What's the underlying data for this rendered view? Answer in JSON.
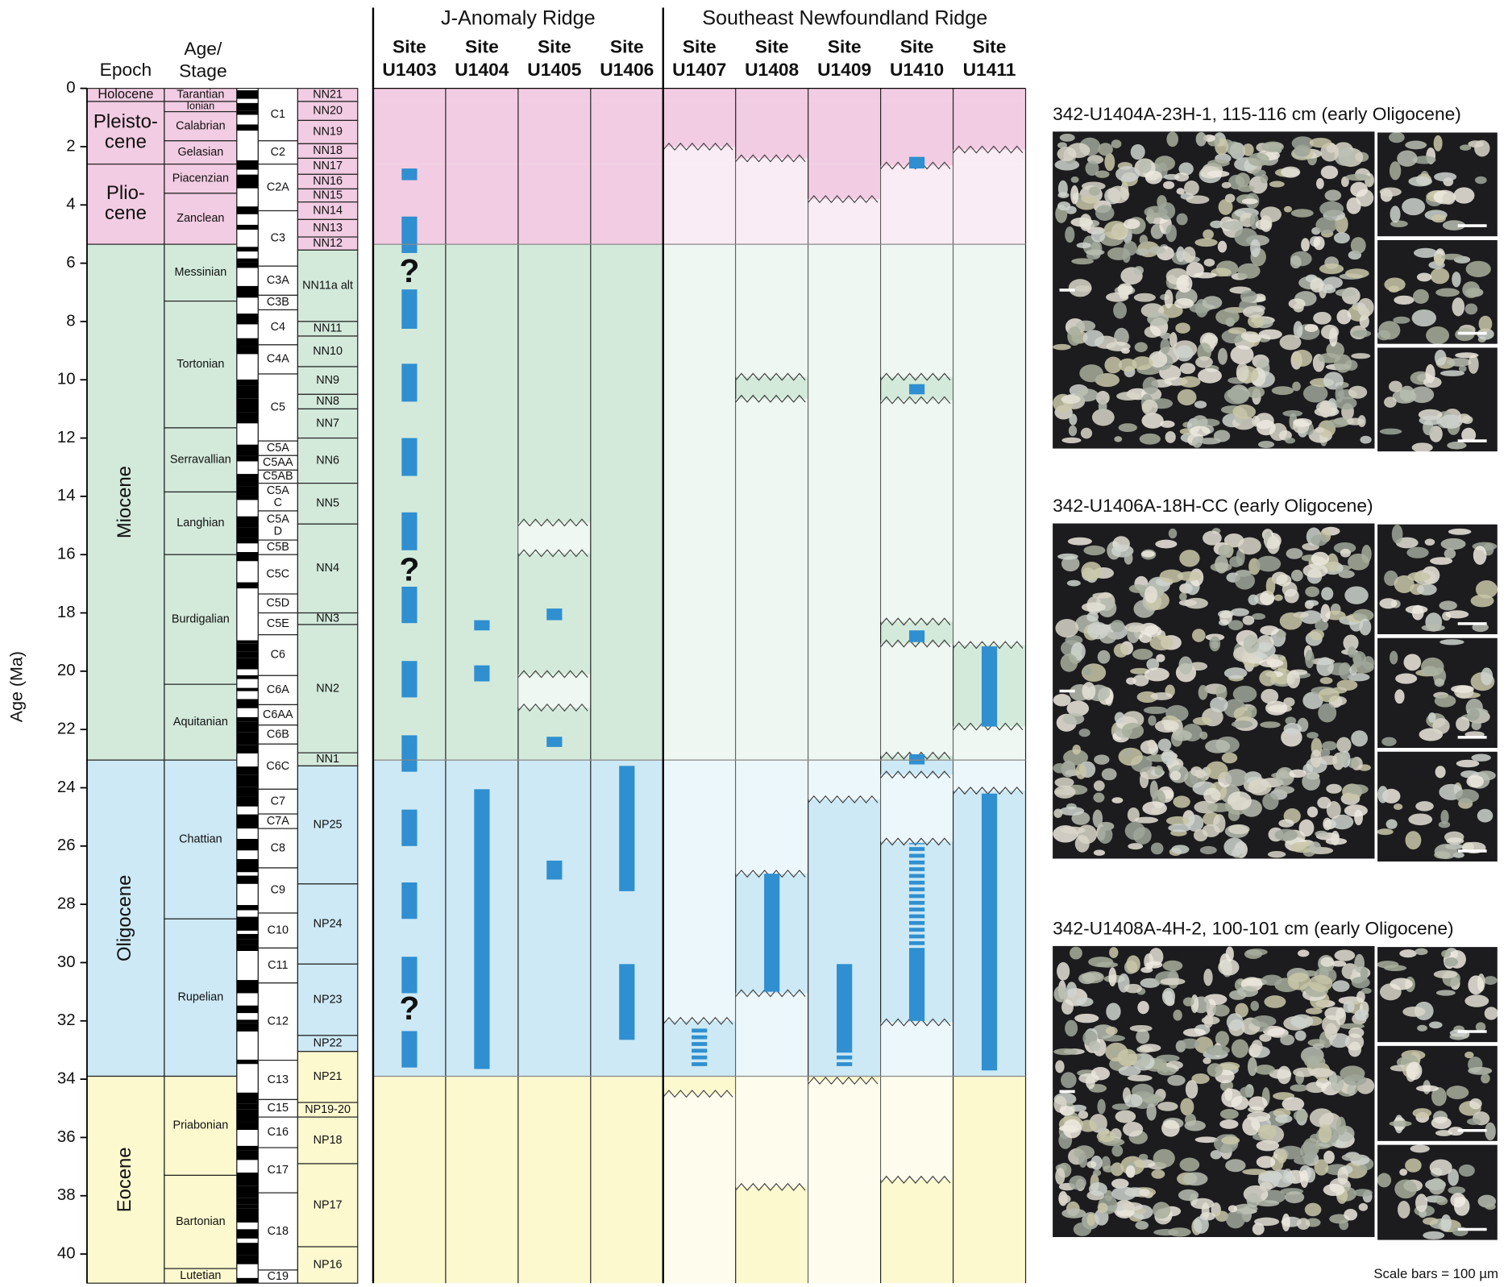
{
  "chart_data": {
    "type": "stratigraphic",
    "y_label": "Age (Ma)",
    "ylim": [
      0,
      41
    ],
    "yticks": [
      0,
      2,
      4,
      6,
      8,
      10,
      12,
      14,
      16,
      18,
      20,
      22,
      24,
      26,
      28,
      30,
      32,
      34,
      36,
      38,
      40
    ],
    "headers": {
      "epoch": [
        "Epoch"
      ],
      "stage": [
        "Age/",
        "Stage"
      ]
    },
    "bar_color": "#2f8fd0",
    "epochs": [
      {
        "label": [
          "Holocene"
        ],
        "top": 0,
        "base": 0.45,
        "color": "#f2cce3"
      },
      {
        "label": [
          "Pleisto-",
          "cene"
        ],
        "top": 0.45,
        "base": 2.6,
        "color": "#f2cce3"
      },
      {
        "label": [
          "Plio-",
          "cene"
        ],
        "top": 2.6,
        "base": 5.35,
        "color": "#f2cce3"
      },
      {
        "label": [
          "Miocene"
        ],
        "top": 5.35,
        "base": 23.05,
        "color": "#d3eadb"
      },
      {
        "label": [
          "Oligocene"
        ],
        "top": 23.05,
        "base": 33.9,
        "color": "#cde9f5"
      },
      {
        "label": [
          "Eocene"
        ],
        "top": 33.9,
        "base": 41,
        "color": "#fdf9cf"
      }
    ],
    "stages": [
      {
        "label": [
          "Tarantian"
        ],
        "top": 0,
        "base": 0.45
      },
      {
        "label": [
          "Ionian"
        ],
        "top": 0.45,
        "base": 0.8
      },
      {
        "label": [
          "Calabrian"
        ],
        "top": 0.8,
        "base": 1.8
      },
      {
        "label": [
          "Gelasian"
        ],
        "top": 1.8,
        "base": 2.6
      },
      {
        "label": [
          "Piacenzian"
        ],
        "top": 2.6,
        "base": 3.6
      },
      {
        "label": [
          "Zanclean"
        ],
        "top": 3.6,
        "base": 5.35
      },
      {
        "label": [
          "Messinian"
        ],
        "top": 5.35,
        "base": 7.3
      },
      {
        "label": [
          "Tortonian"
        ],
        "top": 7.3,
        "base": 11.65
      },
      {
        "label": [
          "Serravallian"
        ],
        "top": 11.65,
        "base": 13.85
      },
      {
        "label": [
          "Langhian"
        ],
        "top": 13.85,
        "base": 16.0
      },
      {
        "label": [
          "Burdigalian"
        ],
        "top": 16.0,
        "base": 20.45
      },
      {
        "label": [
          "Aquitanian"
        ],
        "top": 20.45,
        "base": 23.05
      },
      {
        "label": [
          "Chattian"
        ],
        "top": 23.05,
        "base": 28.5
      },
      {
        "label": [
          "Rupelian"
        ],
        "top": 28.5,
        "base": 33.9
      },
      {
        "label": [
          "Priabonian"
        ],
        "top": 33.9,
        "base": 37.3
      },
      {
        "label": [
          "Bartonian"
        ],
        "top": 37.3,
        "base": 40.5
      },
      {
        "label": [
          "Lutetian"
        ],
        "top": 40.5,
        "base": 41
      }
    ],
    "chrons": [
      {
        "label": [
          "C1"
        ],
        "top": 0,
        "base": 1.8
      },
      {
        "label": [
          "C2"
        ],
        "top": 1.8,
        "base": 2.6
      },
      {
        "label": [
          "C2A"
        ],
        "top": 2.6,
        "base": 4.2
      },
      {
        "label": [
          "C3"
        ],
        "top": 4.2,
        "base": 6.1
      },
      {
        "label": [
          "C3A"
        ],
        "top": 6.1,
        "base": 7.1
      },
      {
        "label": [
          "C3B"
        ],
        "top": 7.1,
        "base": 7.6
      },
      {
        "label": [
          "C4"
        ],
        "top": 7.6,
        "base": 8.8
      },
      {
        "label": [
          "C4A"
        ],
        "top": 8.8,
        "base": 9.8
      },
      {
        "label": [
          "C5"
        ],
        "top": 9.8,
        "base": 12.1
      },
      {
        "label": [
          "C5A"
        ],
        "top": 12.1,
        "base": 12.6
      },
      {
        "label": [
          "C5AA"
        ],
        "top": 12.6,
        "base": 13.1
      },
      {
        "label": [
          "C5AB"
        ],
        "top": 13.1,
        "base": 13.55
      },
      {
        "label": [
          "C5A",
          "C"
        ],
        "top": 13.55,
        "base": 14.5
      },
      {
        "label": [
          "C5A",
          "D"
        ],
        "top": 14.5,
        "base": 15.5
      },
      {
        "label": [
          "C5B"
        ],
        "top": 15.5,
        "base": 16.0
      },
      {
        "label": [
          "C5C"
        ],
        "top": 16.0,
        "base": 17.35
      },
      {
        "label": [
          "C5D"
        ],
        "top": 17.35,
        "base": 18.0
      },
      {
        "label": [
          "C5E"
        ],
        "top": 18.0,
        "base": 18.75
      },
      {
        "label": [
          "C6"
        ],
        "top": 18.75,
        "base": 20.15
      },
      {
        "label": [
          "C6A"
        ],
        "top": 20.15,
        "base": 21.15
      },
      {
        "label": [
          "C6AA"
        ],
        "top": 21.15,
        "base": 21.85
      },
      {
        "label": [
          "C6B"
        ],
        "top": 21.85,
        "base": 22.5
      },
      {
        "label": [
          "C6C"
        ],
        "top": 22.5,
        "base": 24.05
      },
      {
        "label": [
          "C7"
        ],
        "top": 24.05,
        "base": 24.9
      },
      {
        "label": [
          "C7A"
        ],
        "top": 24.9,
        "base": 25.4
      },
      {
        "label": [
          "C8"
        ],
        "top": 25.4,
        "base": 26.75
      },
      {
        "label": [
          "C9"
        ],
        "top": 26.75,
        "base": 28.3
      },
      {
        "label": [
          "C10"
        ],
        "top": 28.3,
        "base": 29.5
      },
      {
        "label": [
          "C11"
        ],
        "top": 29.5,
        "base": 30.7
      },
      {
        "label": [
          "C12"
        ],
        "top": 30.7,
        "base": 33.35
      },
      {
        "label": [
          "C13"
        ],
        "top": 33.35,
        "base": 34.7
      },
      {
        "label": [
          "C15"
        ],
        "top": 34.7,
        "base": 35.3
      },
      {
        "label": [
          "C16"
        ],
        "top": 35.3,
        "base": 36.35
      },
      {
        "label": [
          "C17"
        ],
        "top": 36.35,
        "base": 37.9
      },
      {
        "label": [
          "C18"
        ],
        "top": 37.9,
        "base": 40.55
      },
      {
        "label": [
          "C19"
        ],
        "top": 40.55,
        "base": 41
      }
    ],
    "zones": [
      {
        "label": [
          "NN21"
        ],
        "top": 0,
        "base": 0.45
      },
      {
        "label": [
          "NN20"
        ],
        "top": 0.45,
        "base": 1.1
      },
      {
        "label": [
          "NN19"
        ],
        "top": 1.1,
        "base": 1.9
      },
      {
        "label": [
          "NN18"
        ],
        "top": 1.9,
        "base": 2.4
      },
      {
        "label": [
          "NN17"
        ],
        "top": 2.4,
        "base": 2.95
      },
      {
        "label": [
          "NN16"
        ],
        "top": 2.95,
        "base": 3.45
      },
      {
        "label": [
          "NN15"
        ],
        "top": 3.45,
        "base": 3.9
      },
      {
        "label": [
          "NN14"
        ],
        "top": 3.9,
        "base": 4.5
      },
      {
        "label": [
          "NN13"
        ],
        "top": 4.5,
        "base": 5.1
      },
      {
        "label": [
          "NN12"
        ],
        "top": 5.1,
        "base": 5.55
      },
      {
        "label": [
          "NN11a alt"
        ],
        "top": 5.55,
        "base": 8.0
      },
      {
        "label": [
          "NN11"
        ],
        "top": 8.0,
        "base": 8.5
      },
      {
        "label": [
          "NN10"
        ],
        "top": 8.5,
        "base": 9.55
      },
      {
        "label": [
          "NN9"
        ],
        "top": 9.55,
        "base": 10.5
      },
      {
        "label": [
          "NN8"
        ],
        "top": 10.5,
        "base": 11.0
      },
      {
        "label": [
          "NN7"
        ],
        "top": 11.0,
        "base": 12.0
      },
      {
        "label": [
          "NN6"
        ],
        "top": 12.0,
        "base": 13.55
      },
      {
        "label": [
          "NN5"
        ],
        "top": 13.55,
        "base": 14.95
      },
      {
        "label": [
          "NN4"
        ],
        "top": 14.95,
        "base": 18.0
      },
      {
        "label": [
          "NN3"
        ],
        "top": 18.0,
        "base": 18.4
      },
      {
        "label": [
          "NN2"
        ],
        "top": 18.4,
        "base": 22.8
      },
      {
        "label": [
          "NN1"
        ],
        "top": 22.8,
        "base": 23.25
      },
      {
        "label": [
          "NP25"
        ],
        "top": 23.25,
        "base": 27.3
      },
      {
        "label": [
          "NP24"
        ],
        "top": 27.3,
        "base": 30.05
      },
      {
        "label": [
          "NP23"
        ],
        "top": 30.05,
        "base": 32.5
      },
      {
        "label": [
          "NP22"
        ],
        "top": 32.5,
        "base": 33.05
      },
      {
        "label": [
          "NP21"
        ],
        "top": 33.05,
        "base": 34.8
      },
      {
        "label": [
          "NP19-20"
        ],
        "top": 34.8,
        "base": 35.3
      },
      {
        "label": [
          "NP18"
        ],
        "top": 35.3,
        "base": 36.9
      },
      {
        "label": [
          "NP17"
        ],
        "top": 36.9,
        "base": 39.75
      },
      {
        "label": [
          "NP16"
        ],
        "top": 39.75,
        "base": 41
      }
    ],
    "groups": [
      {
        "name": "J-Anomaly Ridge",
        "sites": [
          {
            "header": "Site",
            "name": "U1403",
            "ird": [
              [
                2.75,
                3.15
              ],
              [
                4.4,
                5.65
              ],
              [
                6.9,
                8.25
              ],
              [
                9.45,
                10.75
              ],
              [
                12.0,
                13.3
              ],
              [
                14.55,
                15.85
              ],
              [
                17.1,
                18.35
              ],
              [
                19.65,
                20.9
              ],
              [
                22.2,
                23.45
              ],
              [
                24.75,
                26.0
              ],
              [
                27.25,
                28.5
              ],
              [
                29.8,
                31.05
              ],
              [
                32.35,
                33.6
              ]
            ],
            "ird_dashed": [],
            "hiatuses": [],
            "queries": [
              {
                "label": "?",
                "age": 6.35
              },
              {
                "label": "?",
                "age": 16.6
              },
              {
                "label": "?",
                "age": 31.65
              }
            ]
          },
          {
            "header": "Site",
            "name": "U1404",
            "ird": [
              [
                18.25,
                18.6
              ],
              [
                19.8,
                20.35
              ],
              [
                24.05,
                33.65
              ]
            ],
            "ird_dashed": [],
            "hiatuses": [],
            "queries": []
          },
          {
            "header": "Site",
            "name": "U1405",
            "ird": [
              [
                17.85,
                18.25
              ],
              [
                22.25,
                22.6
              ],
              [
                26.5,
                27.15
              ]
            ],
            "ird_dashed": [],
            "hiatuses": [
              [
                14.9,
                15.95
              ],
              [
                20.1,
                21.25
              ]
            ],
            "queries": []
          },
          {
            "header": "Site",
            "name": "U1406",
            "ird": [
              [
                23.25,
                27.55
              ],
              [
                30.05,
                32.65
              ]
            ],
            "ird_dashed": [],
            "hiatuses": [],
            "queries": []
          }
        ]
      },
      {
        "name": "Southeast Newfoundland Ridge",
        "sites": [
          {
            "header": "Site",
            "name": "U1407",
            "ird": [],
            "ird_dashed": [
              [
                32.2,
                33.65
              ]
            ],
            "hiatuses": [
              [
                2.0,
                32.0
              ],
              [
                34.5,
                41
              ]
            ],
            "queries": []
          },
          {
            "header": "Site",
            "name": "U1408",
            "ird": [
              [
                26.95,
                31.0
              ]
            ],
            "ird_dashed": [],
            "hiatuses": [
              [
                2.4,
                9.9
              ],
              [
                10.65,
                26.95
              ],
              [
                31.05,
                37.7
              ]
            ],
            "queries": []
          },
          {
            "header": "Site",
            "name": "U1409",
            "ird": [
              [
                30.05,
                33.0
              ]
            ],
            "ird_dashed": [
              [
                33.0,
                33.65
              ]
            ],
            "hiatuses": [
              [
                3.8,
                24.4
              ],
              [
                34.05,
                41
              ]
            ],
            "queries": []
          },
          {
            "header": "Site",
            "name": "U1410",
            "ird": [
              [
                2.35,
                2.75
              ],
              [
                10.15,
                10.5
              ],
              [
                18.6,
                19.0
              ],
              [
                22.85,
                23.2
              ],
              [
                29.5,
                32.0
              ]
            ],
            "ird_dashed": [
              [
                25.9,
                29.5
              ]
            ],
            "hiatuses": [
              [
                2.65,
                9.9
              ],
              [
                10.7,
                18.3
              ],
              [
                19.05,
                22.9
              ],
              [
                23.55,
                25.85
              ],
              [
                32.05,
                37.45
              ]
            ],
            "queries": []
          },
          {
            "header": "Site",
            "name": "U1411",
            "ird": [
              [
                19.15,
                21.9
              ],
              [
                24.2,
                33.7
              ]
            ],
            "ird_dashed": [],
            "hiatuses": [
              [
                2.1,
                19.1
              ],
              [
                21.9,
                24.1
              ]
            ],
            "queries": []
          }
        ]
      }
    ],
    "photos": [
      {
        "caption": "342-U1404A-23H-1, 115-116 cm (early Oligocene)"
      },
      {
        "caption": "342-U1406A-18H-CC (early Oligocene)"
      },
      {
        "caption": "342-U1408A-4H-2, 100-101 cm (early Oligocene)"
      }
    ],
    "scale_note": "Scale bars = 100 µm"
  }
}
